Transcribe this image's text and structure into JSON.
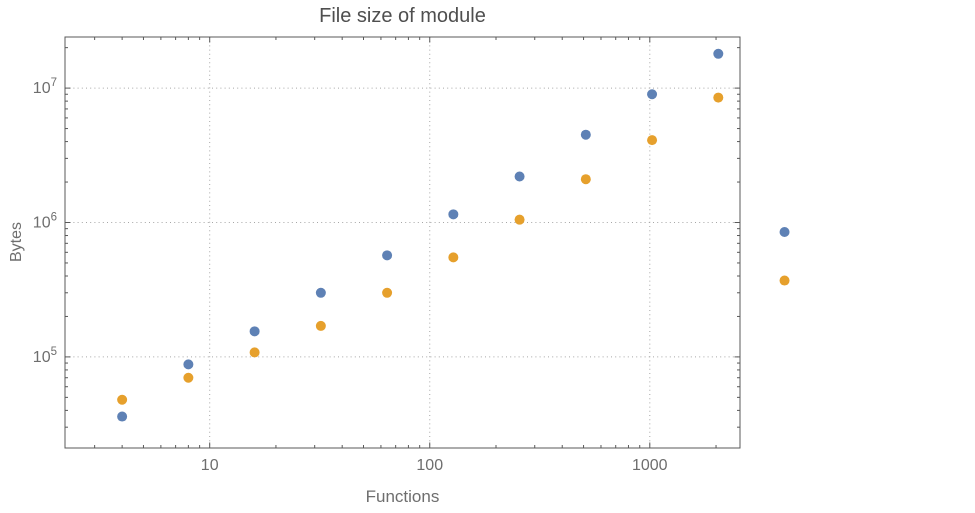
{
  "chart_data": {
    "type": "scatter",
    "scale": "log-log",
    "title": "File size of module",
    "xlabel": "Functions",
    "ylabel": "Bytes",
    "xlim": [
      2.2,
      2570
    ],
    "ylim": [
      21000,
      24000000
    ],
    "grid": "dotted gridlines at decade values, frame on all four sides, legend none",
    "x": [
      4,
      8,
      16,
      32,
      64,
      128,
      256,
      512,
      1024,
      2048,
      4096
    ],
    "series": [
      {
        "name": "blue",
        "color": "#5e81b5",
        "values": [
          36000,
          88000,
          155000,
          300000,
          570000,
          1150000,
          2200000,
          4500000,
          9000000,
          18000000,
          850000
        ]
      },
      {
        "name": "orange",
        "color": "#e6a02c",
        "values": [
          48000,
          70000,
          108000,
          170000,
          300000,
          550000,
          1050000,
          2100000,
          4100000,
          8500000,
          370000
        ]
      }
    ],
    "x_ticks": [
      {
        "label": "10",
        "value": 10
      },
      {
        "label": "100",
        "value": 100
      },
      {
        "label": "1000",
        "value": 1000
      }
    ],
    "y_ticks": [
      {
        "base": "10",
        "exponent": "5",
        "value": 100000
      },
      {
        "base": "10",
        "exponent": "6",
        "value": 1000000
      },
      {
        "base": "10",
        "exponent": "7",
        "value": 10000000
      }
    ],
    "colors": {
      "frame": "#585858",
      "grid": "#a6a6a6",
      "tick_label": "#6e6e6e",
      "title": "#4f4f4f"
    }
  }
}
